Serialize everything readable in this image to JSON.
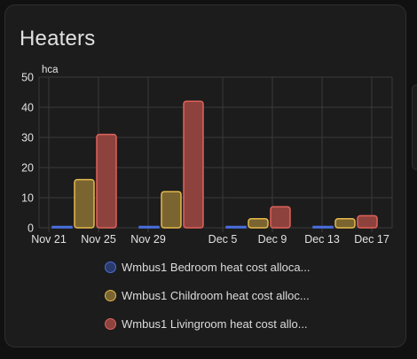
{
  "card": {
    "title": "Heaters"
  },
  "colors": {
    "card_bg": "#1c1c1c",
    "grid": "#3a3a3a",
    "tick_text": "#e1e1e1"
  },
  "chart_data": {
    "type": "bar",
    "ylabel": "hca",
    "ylim": [
      0,
      50
    ],
    "yticks": [
      0,
      10,
      20,
      30,
      40,
      50
    ],
    "x_tick_labels": [
      "Nov 21",
      "Nov 25",
      "Nov 29",
      "Dec 5",
      "Dec 9",
      "Dec 13",
      "Dec 17"
    ],
    "groups": [
      "Nov 23",
      "Nov 30",
      "Dec 7",
      "Dec 14"
    ],
    "grid": true,
    "legend_position": "bottom",
    "series": [
      {
        "name": "Wmbus1 Bedroom heat cost alloca...",
        "values": [
          0,
          0,
          0,
          0
        ],
        "color": "#4a6fe0",
        "fill": "#2a3a6a"
      },
      {
        "name": "Wmbus1 Childroom heat cost alloc...",
        "values": [
          16,
          12,
          3,
          3
        ],
        "color": "#e6b94c",
        "fill": "#7a6530"
      },
      {
        "name": "Wmbus1 Livingroom heat cost allo...",
        "values": [
          31,
          42,
          7,
          4
        ],
        "color": "#e0625a",
        "fill": "#8e423d"
      }
    ]
  }
}
